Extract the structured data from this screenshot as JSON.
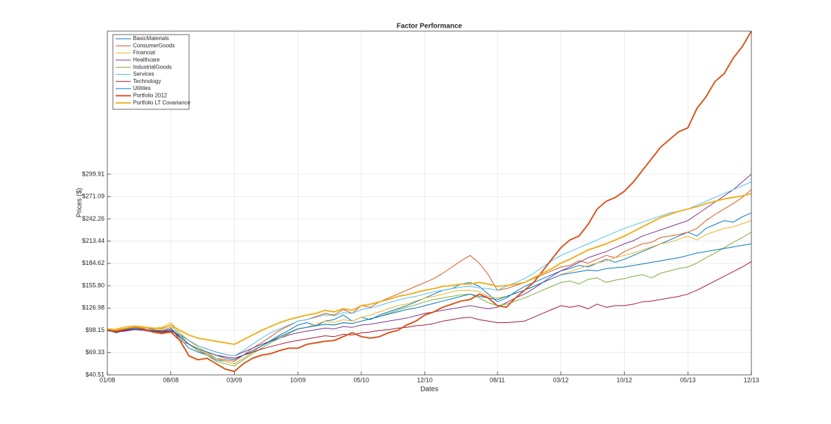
{
  "chart_data": {
    "type": "line",
    "title": "Factor Performance",
    "x_label": "Dates",
    "y_label": "Prices ($)",
    "categories": [
      "01/08",
      null,
      null,
      null,
      null,
      null,
      null,
      "08/08",
      null,
      null,
      null,
      null,
      null,
      null,
      "03/09",
      null,
      null,
      null,
      null,
      null,
      null,
      "10/09",
      null,
      null,
      null,
      null,
      null,
      null,
      "05/10",
      null,
      null,
      null,
      null,
      null,
      null,
      "12/10",
      null,
      null,
      null,
      null,
      null,
      null,
      null,
      "08/11",
      null,
      null,
      null,
      null,
      null,
      null,
      "03/12",
      null,
      null,
      null,
      null,
      null,
      null,
      "10/12",
      null,
      null,
      null,
      null,
      null,
      null,
      "05/13",
      null,
      null,
      null,
      null,
      null,
      null,
      "12/13"
    ],
    "ylim": [
      40.51,
      485
    ],
    "yticks": [
      {
        "value": 40.51,
        "label": "$40.51"
      },
      {
        "value": 69.33,
        "label": "$69.33"
      },
      {
        "value": 98.15,
        "label": "$98.15"
      },
      {
        "value": 126.98,
        "label": "$126.98"
      },
      {
        "value": 155.8,
        "label": "$155.80"
      },
      {
        "value": 184.62,
        "label": "$184.62"
      },
      {
        "value": 213.44,
        "label": "$213.44"
      },
      {
        "value": 242.26,
        "label": "$242.26"
      },
      {
        "value": 271.09,
        "label": "$271.09"
      },
      {
        "value": 299.91,
        "label": "$299.91"
      }
    ],
    "grid": true,
    "legend_position": "upper left",
    "series": [
      {
        "name": "BasicMaterials",
        "color": "#0072bd",
        "width": 1,
        "values": [
          98,
          95,
          99,
          101,
          100,
          97,
          96,
          100,
          88,
          75,
          70,
          66,
          60,
          58,
          55,
          62,
          70,
          78,
          85,
          92,
          98,
          105,
          108,
          104,
          110,
          112,
          118,
          110,
          115,
          112,
          118,
          122,
          126,
          130,
          135,
          140,
          145,
          150,
          152,
          158,
          160,
          155,
          145,
          135,
          140,
          148,
          155,
          160,
          165,
          170,
          175,
          178,
          182,
          180,
          185,
          190,
          186,
          190,
          195,
          200,
          205,
          210,
          215,
          220,
          225,
          220,
          230,
          235,
          240,
          238,
          245,
          250
        ]
      },
      {
        "name": "ConsumerGoods",
        "color": "#d95319",
        "width": 1,
        "values": [
          98,
          96,
          100,
          103,
          102,
          99,
          98,
          102,
          85,
          80,
          72,
          68,
          62,
          60,
          58,
          66,
          75,
          82,
          90,
          98,
          104,
          110,
          112,
          116,
          120,
          118,
          125,
          120,
          130,
          128,
          135,
          140,
          145,
          150,
          155,
          160,
          165,
          172,
          180,
          188,
          195,
          185,
          170,
          150,
          152,
          156,
          160,
          165,
          170,
          175,
          180,
          182,
          188,
          185,
          190,
          195,
          192,
          200,
          205,
          210,
          212,
          218,
          220,
          222,
          225,
          230,
          240,
          248,
          255,
          262,
          270,
          280
        ]
      },
      {
        "name": "Financial",
        "color": "#edb120",
        "width": 1,
        "values": [
          98,
          100,
          103,
          104,
          103,
          101,
          102,
          108,
          95,
          85,
          76,
          70,
          62,
          58,
          55,
          62,
          70,
          78,
          84,
          90,
          95,
          100,
          102,
          106,
          110,
          108,
          112,
          110,
          115,
          118,
          122,
          126,
          130,
          132,
          136,
          140,
          142,
          145,
          148,
          150,
          150,
          148,
          142,
          140,
          142,
          146,
          150,
          155,
          160,
          165,
          170,
          174,
          178,
          182,
          185,
          188,
          192,
          195,
          198,
          202,
          206,
          210,
          212,
          216,
          220,
          215,
          222,
          226,
          230,
          232,
          236,
          240
        ]
      },
      {
        "name": "Healthcare",
        "color": "#7e2f8e",
        "width": 1,
        "values": [
          98,
          96,
          97,
          99,
          98,
          96,
          95,
          97,
          92,
          85,
          78,
          74,
          70,
          67,
          65,
          70,
          75,
          80,
          84,
          88,
          92,
          95,
          97,
          99,
          101,
          100,
          103,
          102,
          105,
          106,
          108,
          110,
          112,
          114,
          117,
          120,
          122,
          124,
          126,
          128,
          130,
          128,
          126,
          128,
          134,
          140,
          145,
          152,
          160,
          168,
          175,
          180,
          186,
          192,
          196,
          200,
          205,
          210,
          214,
          220,
          224,
          228,
          232,
          236,
          240,
          248,
          256,
          264,
          272,
          280,
          290,
          300
        ]
      },
      {
        "name": "IndustrialGoods",
        "color": "#77ac30",
        "width": 1,
        "values": [
          98,
          97,
          101,
          103,
          102,
          100,
          101,
          105,
          92,
          80,
          72,
          66,
          58,
          55,
          52,
          60,
          68,
          75,
          82,
          88,
          94,
          100,
          102,
          104,
          106,
          105,
          108,
          107,
          110,
          113,
          116,
          120,
          124,
          128,
          131,
          135,
          138,
          140,
          142,
          144,
          145,
          140,
          134,
          130,
          132,
          136,
          140,
          145,
          150,
          155,
          160,
          162,
          158,
          164,
          166,
          160,
          163,
          165,
          168,
          170,
          166,
          172,
          175,
          178,
          180,
          185,
          192,
          198,
          205,
          212,
          218,
          225
        ]
      },
      {
        "name": "Services",
        "color": "#4dbeee",
        "width": 1,
        "values": [
          98,
          97,
          100,
          101,
          100,
          98,
          97,
          100,
          93,
          85,
          78,
          74,
          70,
          67,
          65,
          72,
          80,
          88,
          95,
          100,
          105,
          110,
          112,
          115,
          118,
          117,
          121,
          120,
          125,
          127,
          130,
          134,
          137,
          140,
          142,
          145,
          148,
          150,
          152,
          154,
          155,
          153,
          152,
          150,
          155,
          160,
          165,
          172,
          180,
          188,
          195,
          200,
          205,
          210,
          215,
          220,
          225,
          230,
          234,
          238,
          242,
          246,
          250,
          252,
          255,
          260,
          265,
          270,
          275,
          280,
          285,
          290
        ]
      },
      {
        "name": "Technology",
        "color": "#a2142f",
        "width": 1,
        "values": [
          98,
          96,
          98,
          100,
          99,
          97,
          96,
          98,
          90,
          80,
          74,
          70,
          66,
          64,
          62,
          66,
          70,
          74,
          77,
          80,
          83,
          85,
          87,
          89,
          91,
          90,
          93,
          92,
          95,
          96,
          98,
          99,
          101,
          102,
          104,
          105,
          107,
          110,
          112,
          114,
          115,
          112,
          110,
          108,
          108,
          109,
          110,
          115,
          120,
          125,
          130,
          128,
          130,
          126,
          132,
          128,
          130,
          130,
          132,
          135,
          136,
          138,
          140,
          142,
          145,
          150,
          156,
          162,
          168,
          174,
          180,
          187
        ]
      },
      {
        "name": "Utilities",
        "color": "#0072bd",
        "width": 1,
        "values": [
          98,
          97,
          99,
          100,
          99,
          98,
          97,
          100,
          90,
          80,
          74,
          70,
          66,
          62,
          60,
          66,
          72,
          78,
          84,
          90,
          95,
          100,
          102,
          104,
          106,
          105,
          108,
          107,
          110,
          113,
          116,
          119,
          122,
          125,
          127,
          130,
          133,
          136,
          139,
          142,
          145,
          142,
          140,
          138,
          142,
          146,
          150,
          155,
          160,
          165,
          170,
          172,
          174,
          176,
          175,
          178,
          179,
          180,
          182,
          184,
          186,
          188,
          190,
          192,
          195,
          198,
          200,
          202,
          204,
          206,
          208,
          210
        ]
      },
      {
        "name": "Portfolio 2012",
        "color": "#d95319",
        "width": 2,
        "values": [
          98,
          97,
          100,
          102,
          100,
          96,
          94,
          96,
          85,
          65,
          60,
          62,
          55,
          48,
          45,
          55,
          62,
          66,
          68,
          72,
          75,
          75,
          80,
          82,
          84,
          85,
          90,
          95,
          90,
          88,
          90,
          95,
          98,
          105,
          110,
          118,
          122,
          128,
          132,
          136,
          138,
          145,
          140,
          130,
          128,
          140,
          150,
          160,
          175,
          190,
          205,
          215,
          220,
          235,
          255,
          265,
          270,
          278,
          290,
          305,
          320,
          335,
          345,
          355,
          360,
          385,
          400,
          420,
          430,
          450,
          465,
          485
        ]
      },
      {
        "name": "Portfolio LT Covariance",
        "color": "#edb120",
        "width": 2,
        "values": [
          100,
          99,
          101,
          103,
          102,
          101,
          100,
          105,
          98,
          92,
          88,
          86,
          84,
          82,
          80,
          86,
          92,
          98,
          103,
          108,
          112,
          115,
          118,
          120,
          124,
          122,
          126,
          124,
          130,
          132,
          135,
          138,
          142,
          144,
          147,
          150,
          152,
          155,
          156,
          158,
          158,
          160,
          158,
          155,
          156,
          158,
          160,
          166,
          172,
          178,
          185,
          190,
          196,
          202,
          206,
          210,
          215,
          220,
          226,
          232,
          238,
          244,
          248,
          252,
          255,
          258,
          262,
          265,
          268,
          270,
          272,
          275
        ]
      }
    ]
  }
}
